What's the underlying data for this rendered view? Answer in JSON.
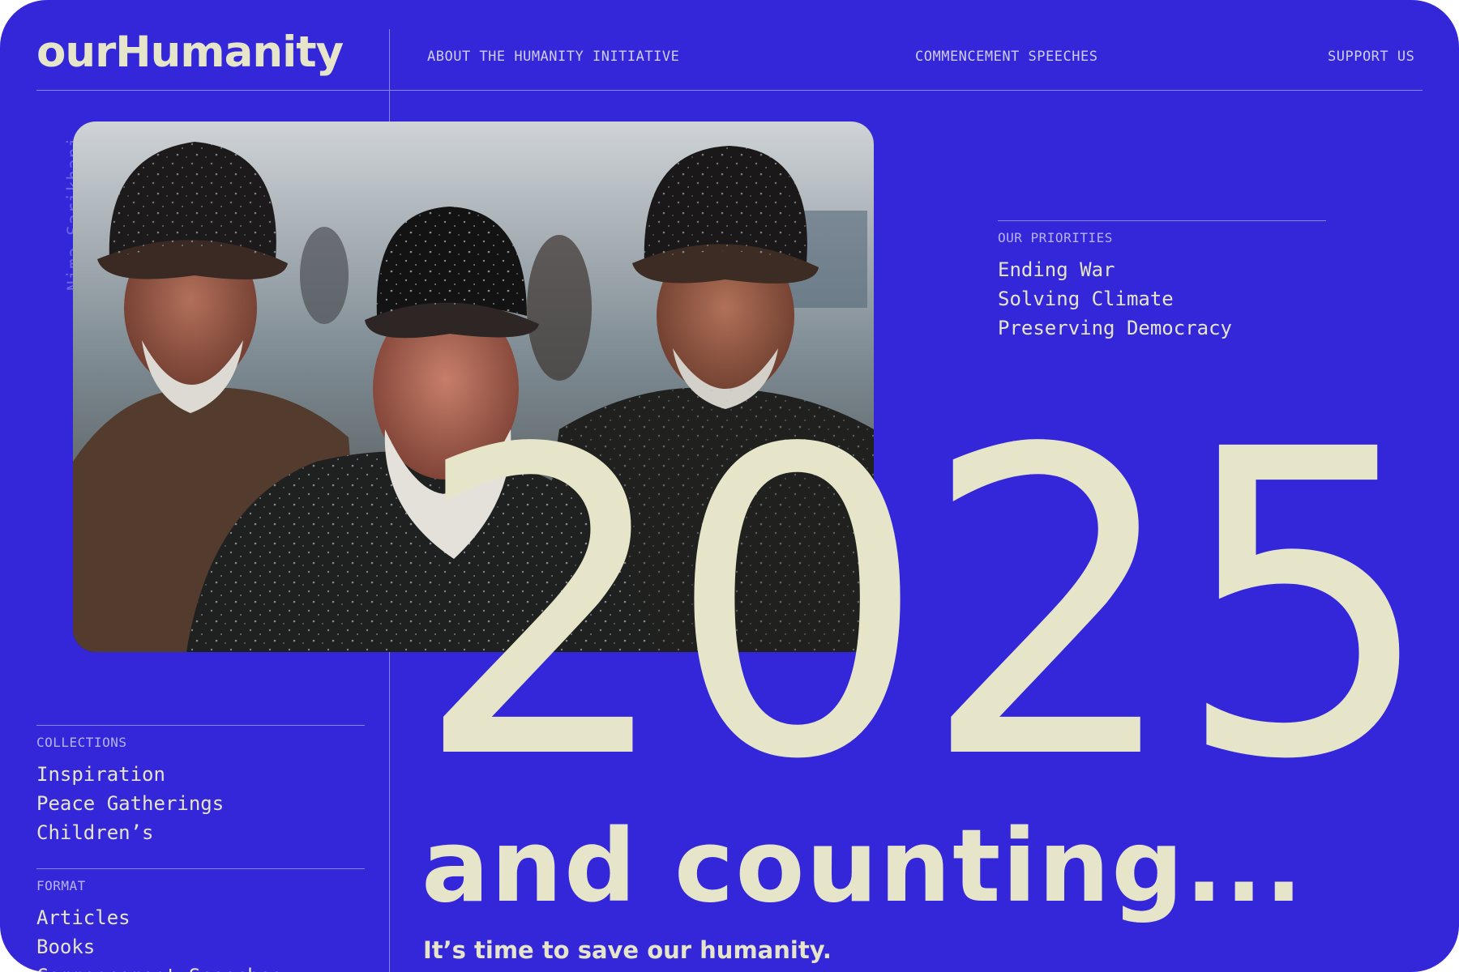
{
  "site": {
    "logo": "ourHumanity"
  },
  "nav": {
    "items": [
      {
        "label": "ABOUT THE HUMANITY INITIATIVE"
      },
      {
        "label": "COMMENCEMENT SPEECHES"
      },
      {
        "label": "SUPPORT US"
      }
    ]
  },
  "hero": {
    "photo_credit": "Nima Sarikhani",
    "year": "2025",
    "headline": "and counting...",
    "tagline": "It’s time to save our humanity."
  },
  "priorities": {
    "label": "OUR PRIORITIES",
    "items": [
      "Ending War",
      "Solving Climate",
      "Preserving Democracy"
    ]
  },
  "sidebar": {
    "collections": {
      "label": "COLLECTIONS",
      "items": [
        "Inspiration",
        "Peace Gatherings",
        "Children’s"
      ]
    },
    "format": {
      "label": "FORMAT",
      "items": [
        "Articles",
        "Books",
        "Commencement Speeches"
      ]
    }
  },
  "colors": {
    "background": "#3327d9",
    "foreground": "#e6e5c9",
    "rule": "#8a85ee"
  }
}
